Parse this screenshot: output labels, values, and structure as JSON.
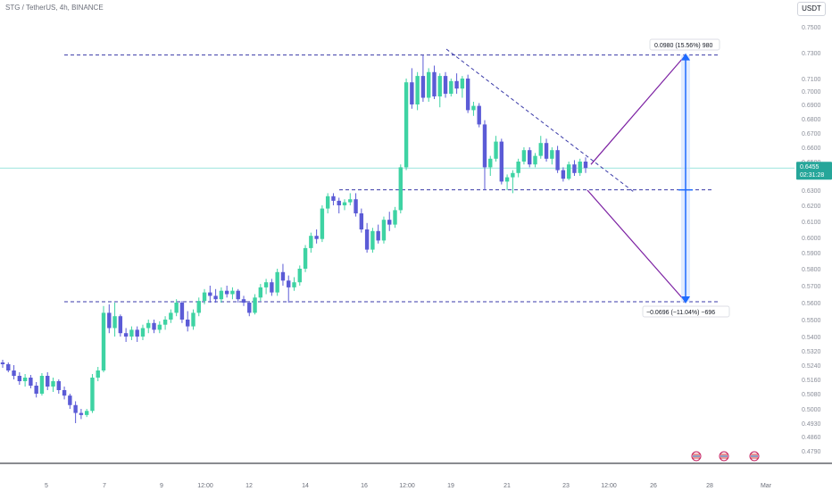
{
  "header": {
    "symbol_title": "STG / TetherUS, 4h, BINANCE",
    "currency_label": "USDT"
  },
  "colors": {
    "up": "#26a69a",
    "up_bright": "#3ed3a3",
    "down": "#5b5bd6",
    "level_line": "#3a3aa8",
    "projection": "#7b1fa2",
    "range_bar": "#1e6bff",
    "price_line": "#5fd3c8"
  },
  "chart_data": {
    "type": "candlestick",
    "y_ticks": [
      "0.7500",
      "0.7300",
      "0.7100",
      "0.7000",
      "0.6900",
      "0.6800",
      "0.6700",
      "0.6600",
      "0.6500",
      "0.6400",
      "0.6300",
      "0.6200",
      "0.6100",
      "0.6000",
      "0.5900",
      "0.5800",
      "0.5700",
      "0.5600",
      "0.5500",
      "0.5400",
      "0.5320",
      "0.5240",
      "0.5160",
      "0.5080",
      "0.5000",
      "0.4930",
      "0.4860",
      "0.4790"
    ],
    "x_ticks": [
      "5",
      "7",
      "9",
      "12:00",
      "12",
      "14",
      "16",
      "12:00",
      "19",
      "21",
      "23",
      "12:00",
      "26",
      "28",
      "Mar"
    ],
    "current_price": {
      "value": 0.6455,
      "label": "0.6455",
      "countdown": "02:31:28"
    },
    "resistance_level": 0.7282,
    "support_level": 0.5605,
    "mid_level": 0.6302,
    "upper_projection_label": "0.0980 (15.56%) 980",
    "lower_projection_label": "−0.0696 (−11.04%) −696",
    "candles": [
      {
        "o": 0.5255,
        "h": 0.527,
        "l": 0.5225,
        "c": 0.5245
      },
      {
        "o": 0.5245,
        "h": 0.5255,
        "l": 0.52,
        "c": 0.521
      },
      {
        "o": 0.521,
        "h": 0.524,
        "l": 0.516,
        "c": 0.518
      },
      {
        "o": 0.518,
        "h": 0.52,
        "l": 0.513,
        "c": 0.515
      },
      {
        "o": 0.515,
        "h": 0.519,
        "l": 0.512,
        "c": 0.517
      },
      {
        "o": 0.517,
        "h": 0.5185,
        "l": 0.511,
        "c": 0.5125
      },
      {
        "o": 0.5125,
        "h": 0.5145,
        "l": 0.506,
        "c": 0.508
      },
      {
        "o": 0.508,
        "h": 0.5195,
        "l": 0.507,
        "c": 0.518
      },
      {
        "o": 0.518,
        "h": 0.52,
        "l": 0.51,
        "c": 0.512
      },
      {
        "o": 0.512,
        "h": 0.517,
        "l": 0.509,
        "c": 0.515
      },
      {
        "o": 0.515,
        "h": 0.516,
        "l": 0.508,
        "c": 0.51
      },
      {
        "o": 0.51,
        "h": 0.512,
        "l": 0.505,
        "c": 0.507
      },
      {
        "o": 0.507,
        "h": 0.508,
        "l": 0.5,
        "c": 0.502
      },
      {
        "o": 0.502,
        "h": 0.504,
        "l": 0.493,
        "c": 0.498
      },
      {
        "o": 0.498,
        "h": 0.5,
        "l": 0.495,
        "c": 0.497
      },
      {
        "o": 0.497,
        "h": 0.5,
        "l": 0.496,
        "c": 0.499
      },
      {
        "o": 0.499,
        "h": 0.519,
        "l": 0.498,
        "c": 0.517
      },
      {
        "o": 0.517,
        "h": 0.523,
        "l": 0.515,
        "c": 0.521
      },
      {
        "o": 0.521,
        "h": 0.558,
        "l": 0.52,
        "c": 0.554
      },
      {
        "o": 0.554,
        "h": 0.559,
        "l": 0.542,
        "c": 0.545
      },
      {
        "o": 0.545,
        "h": 0.56,
        "l": 0.54,
        "c": 0.552
      },
      {
        "o": 0.552,
        "h": 0.553,
        "l": 0.54,
        "c": 0.542
      },
      {
        "o": 0.542,
        "h": 0.545,
        "l": 0.537,
        "c": 0.54
      },
      {
        "o": 0.54,
        "h": 0.546,
        "l": 0.538,
        "c": 0.544
      },
      {
        "o": 0.544,
        "h": 0.546,
        "l": 0.537,
        "c": 0.54
      },
      {
        "o": 0.54,
        "h": 0.547,
        "l": 0.538,
        "c": 0.545
      },
      {
        "o": 0.545,
        "h": 0.55,
        "l": 0.542,
        "c": 0.548
      },
      {
        "o": 0.548,
        "h": 0.55,
        "l": 0.542,
        "c": 0.544
      },
      {
        "o": 0.544,
        "h": 0.549,
        "l": 0.542,
        "c": 0.547
      },
      {
        "o": 0.547,
        "h": 0.552,
        "l": 0.544,
        "c": 0.55
      },
      {
        "o": 0.55,
        "h": 0.556,
        "l": 0.548,
        "c": 0.554
      },
      {
        "o": 0.554,
        "h": 0.562,
        "l": 0.552,
        "c": 0.56
      },
      {
        "o": 0.56,
        "h": 0.561,
        "l": 0.548,
        "c": 0.55
      },
      {
        "o": 0.55,
        "h": 0.555,
        "l": 0.543,
        "c": 0.546
      },
      {
        "o": 0.546,
        "h": 0.556,
        "l": 0.544,
        "c": 0.554
      },
      {
        "o": 0.554,
        "h": 0.563,
        "l": 0.552,
        "c": 0.561
      },
      {
        "o": 0.561,
        "h": 0.568,
        "l": 0.559,
        "c": 0.566
      },
      {
        "o": 0.566,
        "h": 0.57,
        "l": 0.56,
        "c": 0.564
      },
      {
        "o": 0.564,
        "h": 0.568,
        "l": 0.56,
        "c": 0.562
      },
      {
        "o": 0.562,
        "h": 0.569,
        "l": 0.56,
        "c": 0.567
      },
      {
        "o": 0.567,
        "h": 0.57,
        "l": 0.563,
        "c": 0.565
      },
      {
        "o": 0.565,
        "h": 0.569,
        "l": 0.562,
        "c": 0.567
      },
      {
        "o": 0.567,
        "h": 0.568,
        "l": 0.56,
        "c": 0.562
      },
      {
        "o": 0.562,
        "h": 0.564,
        "l": 0.558,
        "c": 0.56
      },
      {
        "o": 0.56,
        "h": 0.561,
        "l": 0.552,
        "c": 0.554
      },
      {
        "o": 0.554,
        "h": 0.565,
        "l": 0.553,
        "c": 0.563
      },
      {
        "o": 0.563,
        "h": 0.571,
        "l": 0.561,
        "c": 0.569
      },
      {
        "o": 0.569,
        "h": 0.574,
        "l": 0.565,
        "c": 0.572
      },
      {
        "o": 0.572,
        "h": 0.574,
        "l": 0.564,
        "c": 0.566
      },
      {
        "o": 0.566,
        "h": 0.58,
        "l": 0.564,
        "c": 0.578
      },
      {
        "o": 0.578,
        "h": 0.583,
        "l": 0.57,
        "c": 0.573
      },
      {
        "o": 0.573,
        "h": 0.576,
        "l": 0.56,
        "c": 0.569
      },
      {
        "o": 0.569,
        "h": 0.575,
        "l": 0.567,
        "c": 0.572
      },
      {
        "o": 0.572,
        "h": 0.582,
        "l": 0.57,
        "c": 0.58
      },
      {
        "o": 0.58,
        "h": 0.595,
        "l": 0.578,
        "c": 0.593
      },
      {
        "o": 0.593,
        "h": 0.603,
        "l": 0.59,
        "c": 0.601
      },
      {
        "o": 0.601,
        "h": 0.605,
        "l": 0.596,
        "c": 0.599
      },
      {
        "o": 0.599,
        "h": 0.62,
        "l": 0.597,
        "c": 0.618
      },
      {
        "o": 0.618,
        "h": 0.628,
        "l": 0.615,
        "c": 0.626
      },
      {
        "o": 0.626,
        "h": 0.628,
        "l": 0.62,
        "c": 0.623
      },
      {
        "o": 0.623,
        "h": 0.625,
        "l": 0.615,
        "c": 0.62
      },
      {
        "o": 0.62,
        "h": 0.624,
        "l": 0.617,
        "c": 0.622
      },
      {
        "o": 0.622,
        "h": 0.628,
        "l": 0.62,
        "c": 0.624
      },
      {
        "o": 0.624,
        "h": 0.628,
        "l": 0.613,
        "c": 0.615
      },
      {
        "o": 0.615,
        "h": 0.618,
        "l": 0.603,
        "c": 0.605
      },
      {
        "o": 0.605,
        "h": 0.609,
        "l": 0.59,
        "c": 0.592
      },
      {
        "o": 0.592,
        "h": 0.606,
        "l": 0.59,
        "c": 0.604
      },
      {
        "o": 0.604,
        "h": 0.608,
        "l": 0.596,
        "c": 0.598
      },
      {
        "o": 0.598,
        "h": 0.613,
        "l": 0.596,
        "c": 0.611
      },
      {
        "o": 0.611,
        "h": 0.616,
        "l": 0.604,
        "c": 0.608
      },
      {
        "o": 0.608,
        "h": 0.619,
        "l": 0.606,
        "c": 0.617
      },
      {
        "o": 0.617,
        "h": 0.648,
        "l": 0.615,
        "c": 0.646
      },
      {
        "o": 0.646,
        "h": 0.71,
        "l": 0.644,
        "c": 0.707
      },
      {
        "o": 0.707,
        "h": 0.718,
        "l": 0.687,
        "c": 0.69
      },
      {
        "o": 0.69,
        "h": 0.715,
        "l": 0.686,
        "c": 0.712
      },
      {
        "o": 0.712,
        "h": 0.728,
        "l": 0.692,
        "c": 0.695
      },
      {
        "o": 0.695,
        "h": 0.718,
        "l": 0.692,
        "c": 0.715
      },
      {
        "o": 0.715,
        "h": 0.72,
        "l": 0.694,
        "c": 0.696
      },
      {
        "o": 0.696,
        "h": 0.714,
        "l": 0.688,
        "c": 0.712
      },
      {
        "o": 0.712,
        "h": 0.715,
        "l": 0.695,
        "c": 0.698
      },
      {
        "o": 0.698,
        "h": 0.71,
        "l": 0.696,
        "c": 0.708
      },
      {
        "o": 0.708,
        "h": 0.714,
        "l": 0.698,
        "c": 0.702
      },
      {
        "o": 0.702,
        "h": 0.712,
        "l": 0.695,
        "c": 0.71
      },
      {
        "o": 0.71,
        "h": 0.713,
        "l": 0.684,
        "c": 0.686
      },
      {
        "o": 0.686,
        "h": 0.692,
        "l": 0.682,
        "c": 0.689
      },
      {
        "o": 0.689,
        "h": 0.691,
        "l": 0.674,
        "c": 0.676
      },
      {
        "o": 0.676,
        "h": 0.679,
        "l": 0.63,
        "c": 0.646
      },
      {
        "o": 0.646,
        "h": 0.654,
        "l": 0.64,
        "c": 0.652
      },
      {
        "o": 0.652,
        "h": 0.668,
        "l": 0.65,
        "c": 0.664
      },
      {
        "o": 0.664,
        "h": 0.666,
        "l": 0.634,
        "c": 0.636
      },
      {
        "o": 0.636,
        "h": 0.641,
        "l": 0.63,
        "c": 0.639
      },
      {
        "o": 0.639,
        "h": 0.644,
        "l": 0.628,
        "c": 0.642
      },
      {
        "o": 0.642,
        "h": 0.652,
        "l": 0.639,
        "c": 0.65
      },
      {
        "o": 0.65,
        "h": 0.66,
        "l": 0.648,
        "c": 0.658
      },
      {
        "o": 0.658,
        "h": 0.66,
        "l": 0.646,
        "c": 0.648
      },
      {
        "o": 0.648,
        "h": 0.656,
        "l": 0.646,
        "c": 0.654
      },
      {
        "o": 0.654,
        "h": 0.668,
        "l": 0.652,
        "c": 0.663
      },
      {
        "o": 0.663,
        "h": 0.666,
        "l": 0.65,
        "c": 0.652
      },
      {
        "o": 0.652,
        "h": 0.66,
        "l": 0.648,
        "c": 0.658
      },
      {
        "o": 0.658,
        "h": 0.661,
        "l": 0.642,
        "c": 0.644
      },
      {
        "o": 0.644,
        "h": 0.646,
        "l": 0.636,
        "c": 0.638
      },
      {
        "o": 0.638,
        "h": 0.65,
        "l": 0.637,
        "c": 0.648
      },
      {
        "o": 0.648,
        "h": 0.651,
        "l": 0.64,
        "c": 0.642
      },
      {
        "o": 0.642,
        "h": 0.652,
        "l": 0.64,
        "c": 0.65
      },
      {
        "o": 0.65,
        "h": 0.653,
        "l": 0.642,
        "c": 0.6455
      }
    ]
  }
}
